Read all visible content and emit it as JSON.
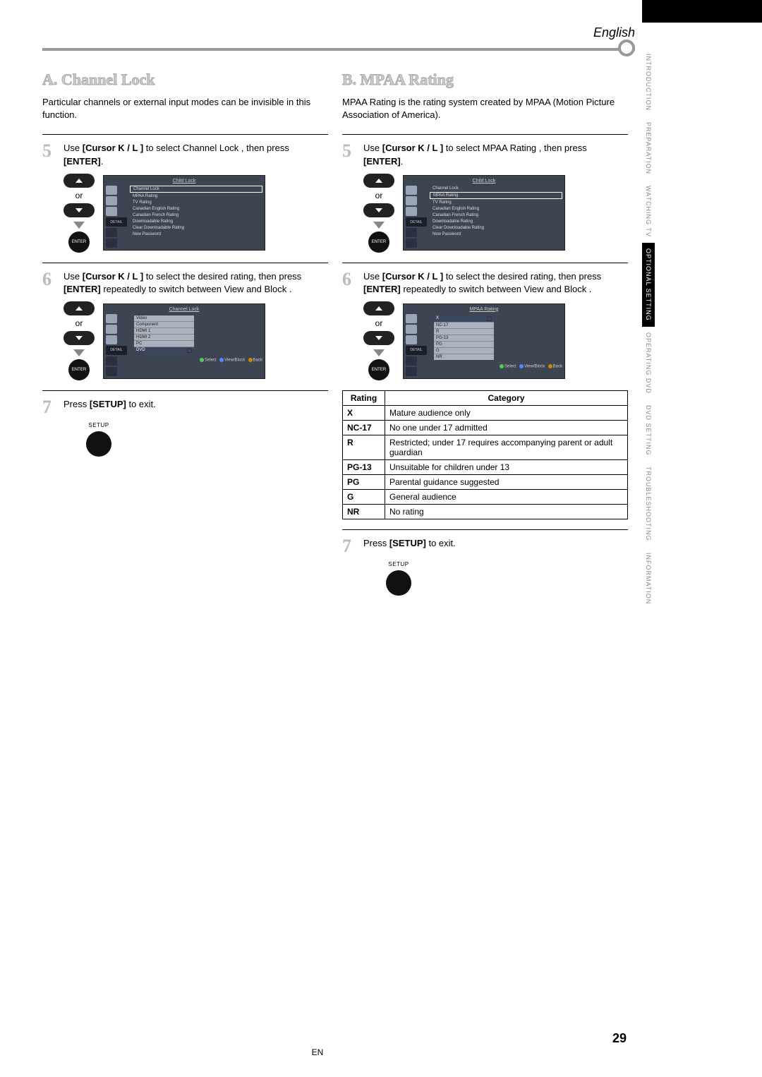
{
  "language_label": "English",
  "side_tabs": [
    {
      "label": "INTRODUCTION",
      "active": false
    },
    {
      "label": "PREPARATION",
      "active": false
    },
    {
      "label": "WATCHING TV",
      "active": false
    },
    {
      "label": "OPTIONAL SETTING",
      "active": true
    },
    {
      "label": "OPERATING DVD",
      "active": false
    },
    {
      "label": "DVD SETTING",
      "active": false
    },
    {
      "label": "TROUBLESHOOTING",
      "active": false
    },
    {
      "label": "INFORMATION",
      "active": false
    }
  ],
  "colA": {
    "title": "A. Channel Lock",
    "intro": "Particular channels or external input modes can be invisible in this function.",
    "step5": {
      "pre": "Use ",
      "cursor": "[Cursor K / L ]",
      "mid": " to select  Channel Lock , then press ",
      "enter": "[ENTER]"
    },
    "step6": {
      "pre": "Use ",
      "cursor": "[Cursor K / L ]",
      "mid": " to select the desired rating, then press ",
      "enter": "[ENTER]",
      "post": " repeatedly to switch between  View  and  Block ."
    },
    "step7": {
      "pre": "Press ",
      "setup": "[SETUP]",
      "post": " to exit."
    },
    "osd1": {
      "title": "Child Lock",
      "items": [
        "Channel Lock",
        "MPAA Rating",
        "TV Rating",
        "Canadian English Rating",
        "Canadian French Rating",
        "Downloadable Rating",
        "Clear Downloadable Rating",
        "New Password"
      ],
      "selected": 0
    },
    "osd2": {
      "title": "Channel Lock",
      "sub_items": [
        "Video",
        "Component",
        "HDMI 1",
        "HDMI 2",
        "PC",
        "DVD"
      ],
      "highlighted": 5,
      "footer_select": "Select",
      "footer_view": "View/Block",
      "footer_back": "Back"
    }
  },
  "colB": {
    "title": "B. MPAA Rating",
    "intro": "MPAA Rating is the rating system created by MPAA (Motion Picture Association of America).",
    "step5": {
      "pre": "Use ",
      "cursor": "[Cursor K / L ]",
      "mid": " to select  MPAA Rating , then press ",
      "enter": "[ENTER]"
    },
    "step6": {
      "pre": "Use ",
      "cursor": "[Cursor K / L ]",
      "mid": " to select the desired rating, then press ",
      "enter": "[ENTER]",
      "post": " repeatedly to switch between  View  and  Block ."
    },
    "step7": {
      "pre": "Press ",
      "setup": "[SETUP]",
      "post": " to exit."
    },
    "osd1": {
      "title": "Child Lock",
      "items": [
        "Channel Lock",
        "MPAA Rating",
        "TV Rating",
        "Canadian English Rating",
        "Canadian French Rating",
        "Downloadable Rating",
        "Clear Downloadable Rating",
        "New Password"
      ],
      "selected": 1
    },
    "osd2": {
      "title": "MPAA Rating",
      "sub_items": [
        "X",
        "NC-17",
        "R",
        "PG-13",
        "PG",
        "G",
        "NR"
      ],
      "highlighted": 0,
      "footer_select": "Select",
      "footer_view": "View/Block",
      "footer_back": "Back"
    },
    "ratings_table": {
      "head": [
        "Rating",
        "Category"
      ],
      "rows": [
        [
          "X",
          "Mature audience only"
        ],
        [
          "NC-17",
          "No one under 17 admitted"
        ],
        [
          "R",
          "Restricted; under 17 requires accompanying parent or adult guardian"
        ],
        [
          "PG-13",
          "Unsuitable for children under 13"
        ],
        [
          "PG",
          "Parental guidance suggested"
        ],
        [
          "G",
          "General audience"
        ],
        [
          "NR",
          "No rating"
        ]
      ]
    }
  },
  "remote": {
    "or": "or",
    "enter": "ENTER",
    "setup": "SETUP",
    "detail": "DETAIL"
  },
  "page_number": "29",
  "page_lang_code": "EN",
  "colors": {
    "osd_bg": "#3d4452",
    "title_outline": "#aaaaaa",
    "step_num": "#bbbbbb",
    "header_rule": "#999999"
  }
}
